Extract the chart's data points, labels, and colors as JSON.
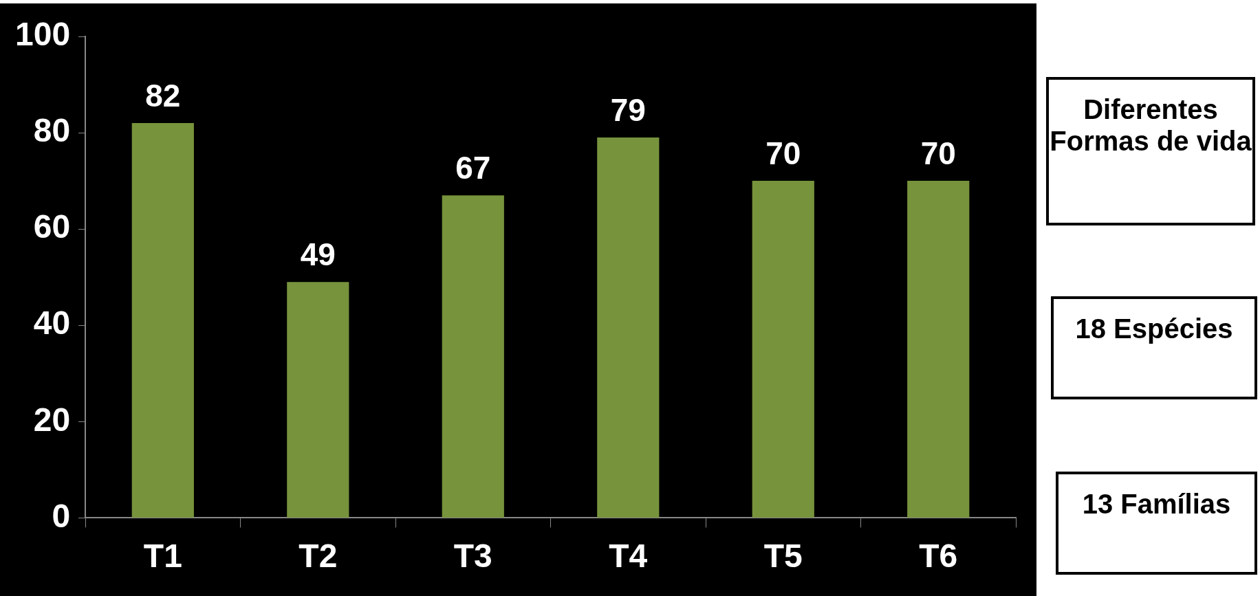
{
  "chart_data": {
    "type": "bar",
    "categories": [
      "T1",
      "T2",
      "T3",
      "T4",
      "T5",
      "T6"
    ],
    "values": [
      82,
      49,
      67,
      79,
      70,
      70
    ],
    "color": "#77933c",
    "ylim": [
      0,
      100
    ],
    "yticks": [
      0,
      20,
      40,
      60,
      80,
      100
    ],
    "grid": false,
    "legend": false,
    "data_labels": true,
    "annotations": [
      "Diferentes Formas de vida",
      "18 Espécies",
      "13 Famílias"
    ]
  }
}
